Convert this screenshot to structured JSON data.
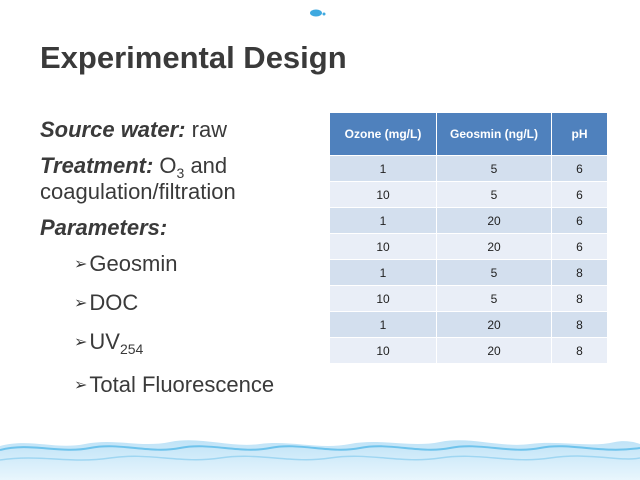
{
  "slide": {
    "title": "Experimental Design",
    "source_label": "Source water:",
    "source_value": " raw",
    "treatment_label": "Treatment:",
    "treatment_pre": " O",
    "treatment_sub": "3",
    "treatment_post": " and",
    "treatment_line2": "coagulation/filtration",
    "parameters_label": "Parameters:",
    "bullet_icon": "arrow-bullet-icon",
    "parameters": [
      {
        "text": "Geosmin"
      },
      {
        "text": "DOC"
      },
      {
        "text": "UV",
        "sub": "254"
      },
      {
        "text": "Total Fluorescence"
      }
    ]
  },
  "table": {
    "headers": [
      "Ozone (mg/L)",
      "Geosmin (ng/L)",
      "pH"
    ],
    "rows": [
      [
        "1",
        "5",
        "6"
      ],
      [
        "10",
        "5",
        "6"
      ],
      [
        "1",
        "20",
        "6"
      ],
      [
        "10",
        "20",
        "6"
      ],
      [
        "1",
        "5",
        "8"
      ],
      [
        "10",
        "5",
        "8"
      ],
      [
        "1",
        "20",
        "8"
      ],
      [
        "10",
        "20",
        "8"
      ]
    ]
  },
  "colors": {
    "header_bg": "#4f81bd",
    "row_odd": "#d3dfee",
    "row_even": "#e9eef7",
    "title_text": "#3a3a3a"
  }
}
